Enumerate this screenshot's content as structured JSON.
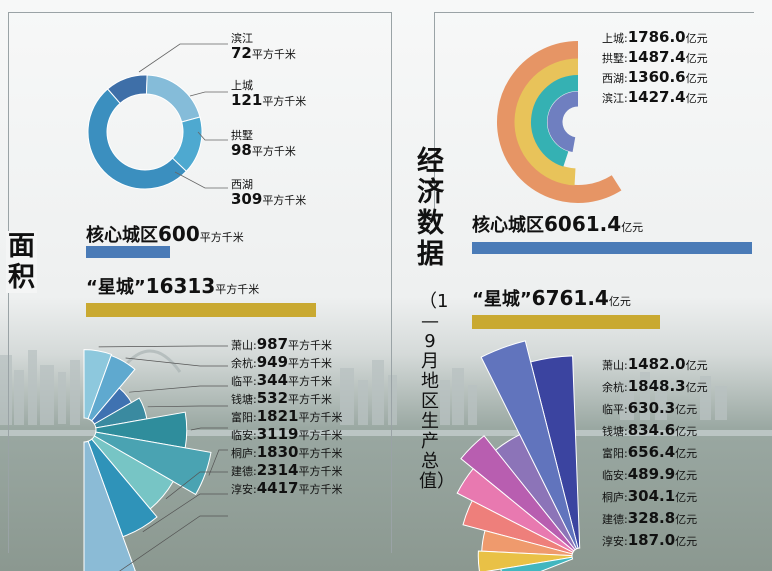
{
  "left": {
    "title": "面积",
    "core_label": "核心城区",
    "core_value": "600",
    "unit": "平方千米",
    "star_label": "“星城”",
    "star_value": "16313"
  },
  "right": {
    "title": "经济数据",
    "subtitle": "（1—9月地区生产总值）",
    "core_label": "核心城区",
    "core_value": "6061.4",
    "unit": "亿元",
    "star_label": "“星城”",
    "star_value": "6761.4"
  },
  "chart_data": [
    {
      "type": "pie",
      "title": "面积 核心城区",
      "unit": "平方千米",
      "categories": [
        "滨江",
        "上城",
        "拱墅",
        "西湖"
      ],
      "values": [
        72,
        121,
        98,
        309
      ],
      "colors": [
        "#3e6fa8",
        "#85bcd9",
        "#4ea9d0",
        "#3b8fbf"
      ]
    },
    {
      "type": "bar",
      "title": "面积 星城",
      "unit": "平方千米",
      "categories": [
        "萧山",
        "余杭",
        "临平",
        "钱塘",
        "富阳",
        "临安",
        "桐庐",
        "建德",
        "淳安"
      ],
      "values": [
        987,
        949,
        344,
        532,
        1821,
        3119,
        1830,
        2314,
        4417
      ],
      "colors": [
        "#8dc8dd",
        "#5fa9cf",
        "#3f72b1",
        "#3a8aa0",
        "#2f8d9c",
        "#4aa3b2",
        "#77c5c5",
        "#2f93b9",
        "#8bbbd6"
      ]
    },
    {
      "type": "bar",
      "title": "经济数据 核心城区",
      "unit": "亿元",
      "categories": [
        "上城",
        "拱墅",
        "西湖",
        "滨江"
      ],
      "values": [
        1786.0,
        1487.4,
        1360.6,
        1427.4
      ],
      "colors": [
        "#e69565",
        "#e8c35a",
        "#35b1b3",
        "#6f7fc0"
      ]
    },
    {
      "type": "bar",
      "title": "经济数据 星城",
      "unit": "亿元",
      "categories": [
        "萧山",
        "余杭",
        "临平",
        "钱塘",
        "富阳",
        "临安",
        "桐庐",
        "建德",
        "淳安"
      ],
      "values": [
        1482.0,
        1848.3,
        630.3,
        834.6,
        656.4,
        489.9,
        304.1,
        328.8,
        187.0
      ],
      "colors": [
        "#3b44a0",
        "#6174bd",
        "#8c74b8",
        "#b85eb0",
        "#e879b0",
        "#ee7f7b",
        "#ef9a6d",
        "#e9c146",
        "#42b6bf"
      ]
    }
  ],
  "colors": {
    "left_bar": "#4a7bb7",
    "star_bar": "#c9a931",
    "right_bar": "#4a7bb7"
  }
}
